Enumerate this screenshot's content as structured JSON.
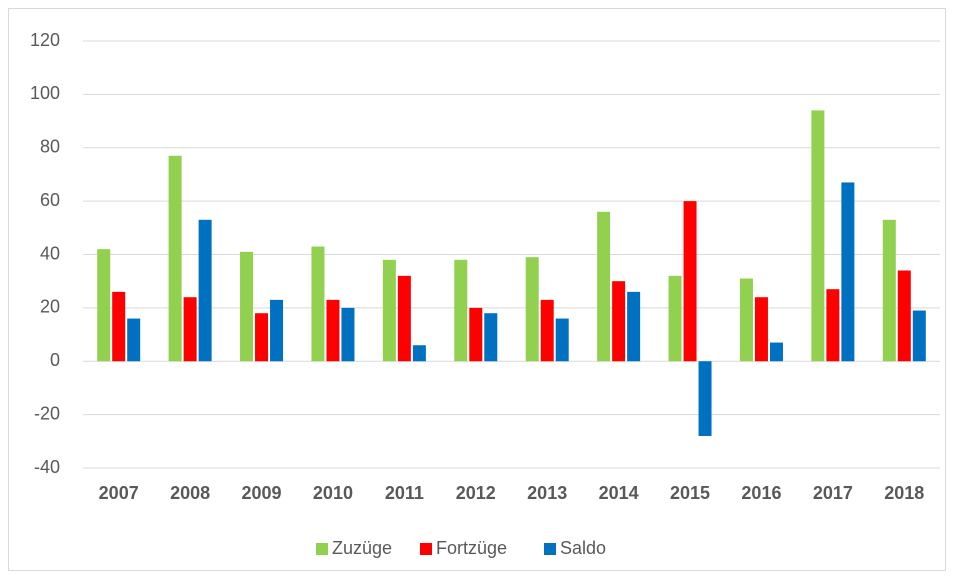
{
  "chart_data": {
    "type": "bar",
    "categories": [
      "2007",
      "2008",
      "2009",
      "2010",
      "2011",
      "2012",
      "2013",
      "2014",
      "2015",
      "2016",
      "2017",
      "2018"
    ],
    "series": [
      {
        "name": "Zuzüge",
        "color": "#92d050",
        "values": [
          42,
          77,
          41,
          43,
          38,
          38,
          39,
          56,
          32,
          31,
          94,
          53
        ]
      },
      {
        "name": "Fortzüge",
        "color": "#ff0000",
        "values": [
          26,
          24,
          18,
          23,
          32,
          20,
          23,
          30,
          60,
          24,
          27,
          34
        ]
      },
      {
        "name": "Saldo",
        "color": "#0070c0",
        "values": [
          16,
          53,
          23,
          20,
          6,
          18,
          16,
          26,
          -28,
          7,
          67,
          19
        ]
      }
    ],
    "ylim": [
      -40,
      120
    ],
    "yticks": [
      -40,
      -20,
      0,
      20,
      40,
      60,
      80,
      100,
      120
    ],
    "grid": true,
    "legend": "bottom"
  }
}
